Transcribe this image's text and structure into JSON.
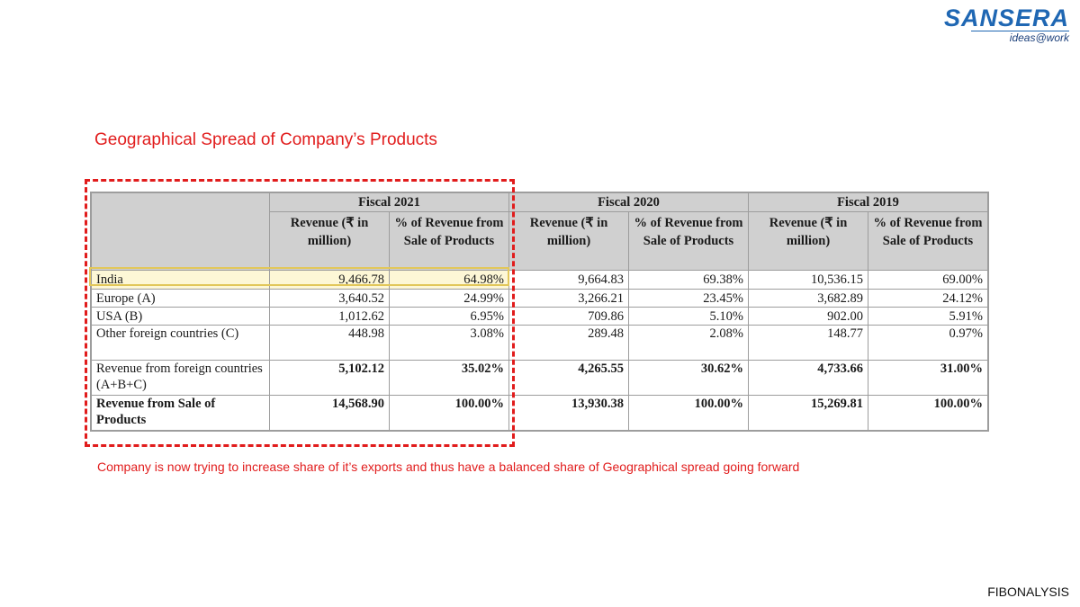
{
  "logo": {
    "word": "SANSERA",
    "tagline": "ideas@work"
  },
  "title": "Geographical Spread of Company’s Products",
  "table": {
    "fiscal_years": [
      "Fiscal 2021",
      "Fiscal 2020",
      "Fiscal 2019"
    ],
    "col_revenue": "Revenue (₹ in million)",
    "col_percent": "% of Revenue from Sale of Products",
    "rows": [
      {
        "label": "India",
        "values": [
          "9,466.78",
          "64.98%",
          "9,664.83",
          "69.38%",
          "10,536.15",
          "69.00%"
        ]
      },
      {
        "label": "Europe (A)",
        "values": [
          "3,640.52",
          "24.99%",
          "3,266.21",
          "23.45%",
          "3,682.89",
          "24.12%"
        ]
      },
      {
        "label": "USA (B)",
        "values": [
          "1,012.62",
          "6.95%",
          "709.86",
          "5.10%",
          "902.00",
          "5.91%"
        ]
      },
      {
        "label": "Other foreign countries (C)",
        "values": [
          "448.98",
          "3.08%",
          "289.48",
          "2.08%",
          "148.77",
          "0.97%"
        ]
      },
      {
        "label": "Revenue from foreign countries (A+B+C)",
        "values": [
          "5,102.12",
          "35.02%",
          "4,265.55",
          "30.62%",
          "4,733.66",
          "31.00%"
        ]
      },
      {
        "label": "Revenue from Sale of Products",
        "values": [
          "14,568.90",
          "100.00%",
          "13,930.38",
          "100.00%",
          "15,269.81",
          "100.00%"
        ]
      }
    ]
  },
  "note": "Company is now trying to increase share of it’s exports and thus have a balanced share of Geographical spread going forward",
  "footer": "FIBONALYSIS",
  "colors": {
    "accent_red": "#e11c1c",
    "brand_blue": "#1f67b3",
    "highlight": "#e2c75a"
  }
}
